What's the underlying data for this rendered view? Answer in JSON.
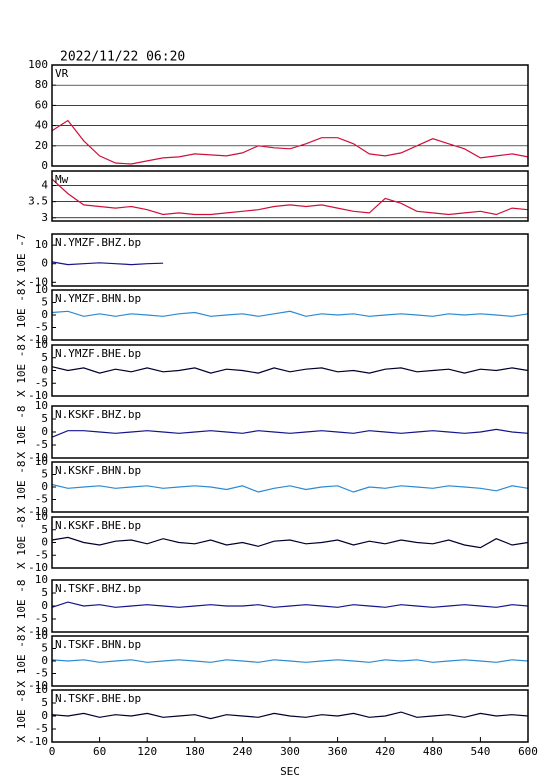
{
  "chart_data": [
    {
      "type": "line",
      "title": "2022/11/22 06:20",
      "label": "VR",
      "xlim": [
        0,
        600
      ],
      "ylim": [
        0,
        100
      ],
      "yticks": [
        0,
        20,
        40,
        60,
        80,
        100
      ],
      "grid": true,
      "x": [
        0,
        20,
        40,
        60,
        80,
        100,
        120,
        140,
        160,
        180,
        200,
        220,
        240,
        260,
        280,
        300,
        320,
        340,
        360,
        380,
        400,
        420,
        440,
        460,
        480,
        500,
        520,
        540,
        560,
        580,
        600
      ],
      "series": [
        {
          "color": "#d0103a",
          "values": [
            35,
            45,
            25,
            10,
            3,
            2,
            5,
            8,
            9,
            12,
            11,
            10,
            13,
            20,
            18,
            17,
            22,
            28,
            28,
            22,
            12,
            10,
            13,
            20,
            27,
            22,
            17,
            8,
            10,
            12,
            9
          ]
        }
      ]
    },
    {
      "type": "line",
      "label": "Mw",
      "xlim": [
        0,
        600
      ],
      "ylim": [
        2.9,
        4.45
      ],
      "yticks": [
        3.0,
        3.5,
        4.0
      ],
      "grid": true,
      "x": [
        0,
        20,
        40,
        60,
        80,
        100,
        120,
        140,
        160,
        180,
        200,
        220,
        240,
        260,
        280,
        300,
        320,
        340,
        360,
        380,
        400,
        420,
        440,
        460,
        480,
        500,
        520,
        540,
        560,
        580,
        600
      ],
      "series": [
        {
          "color": "#d0103a",
          "values": [
            4.2,
            3.75,
            3.4,
            3.35,
            3.3,
            3.35,
            3.25,
            3.1,
            3.15,
            3.1,
            3.1,
            3.15,
            3.2,
            3.25,
            3.35,
            3.4,
            3.35,
            3.4,
            3.3,
            3.2,
            3.15,
            3.6,
            3.45,
            3.2,
            3.15,
            3.1,
            3.15,
            3.2,
            3.1,
            3.3,
            3.25
          ]
        }
      ]
    },
    {
      "type": "line",
      "label": "N.YMZF.BHZ.bp",
      "ylabel": "X 10E -7",
      "xlim": [
        0,
        600
      ],
      "ylim": [
        -12,
        16
      ],
      "yticks": [
        -10,
        0,
        10
      ],
      "x": [
        0,
        20,
        40,
        60,
        80,
        100,
        120,
        140,
        160,
        180,
        200,
        220,
        240,
        260,
        280,
        300,
        320,
        340,
        360,
        380,
        400,
        420,
        440,
        460,
        480,
        500,
        520,
        540,
        560,
        580,
        600
      ],
      "series": [
        {
          "color": "#14148c",
          "values": [
            1,
            -0.5,
            0,
            0.5,
            0,
            -0.5,
            0,
            0.3,
            null,
            null,
            null,
            null,
            null,
            null,
            null,
            null,
            null,
            null,
            null,
            null,
            null,
            null,
            null,
            null,
            null,
            null,
            null,
            null,
            null,
            null,
            null
          ]
        }
      ]
    },
    {
      "type": "line",
      "label": "N.YMZF.BHN.bp",
      "ylabel": "X 10E -8",
      "xlim": [
        0,
        600
      ],
      "ylim": [
        -10,
        10
      ],
      "yticks": [
        -10,
        -5,
        0,
        5,
        10
      ],
      "x": [
        0,
        20,
        40,
        60,
        80,
        100,
        120,
        140,
        160,
        180,
        200,
        220,
        240,
        260,
        280,
        300,
        320,
        340,
        360,
        380,
        400,
        420,
        440,
        460,
        480,
        500,
        520,
        540,
        560,
        580,
        600
      ],
      "series": [
        {
          "color": "#2a8ad4",
          "values": [
            1,
            1.5,
            -0.5,
            0.5,
            -0.5,
            0.5,
            0,
            -0.5,
            0.5,
            1,
            -0.5,
            0,
            0.5,
            -0.5,
            0.5,
            1.5,
            -0.5,
            0.5,
            0,
            0.5,
            -0.5,
            0,
            0.5,
            0,
            -0.5,
            0.5,
            0,
            0.5,
            0,
            -0.5,
            0.5
          ]
        }
      ]
    },
    {
      "type": "line",
      "label": "N.YMZF.BHE.bp",
      "ylabel": "X 10E -8",
      "xlim": [
        0,
        600
      ],
      "ylim": [
        -10,
        10
      ],
      "yticks": [
        -10,
        -5,
        0,
        5,
        10
      ],
      "x": [
        0,
        20,
        40,
        60,
        80,
        100,
        120,
        140,
        160,
        180,
        200,
        220,
        240,
        260,
        280,
        300,
        320,
        340,
        360,
        380,
        400,
        420,
        440,
        460,
        480,
        500,
        520,
        540,
        560,
        580,
        600
      ],
      "series": [
        {
          "color": "#00002e",
          "values": [
            1.5,
            0,
            1,
            -1,
            0.5,
            -0.5,
            1,
            -0.5,
            0,
            1,
            -1,
            0.5,
            0,
            -1,
            1,
            -0.5,
            0.5,
            1,
            -0.5,
            0,
            -1,
            0.5,
            1,
            -0.5,
            0,
            0.5,
            -1,
            0.5,
            0,
            1,
            0
          ]
        }
      ]
    },
    {
      "type": "line",
      "label": "N.KSKF.BHZ.bp",
      "ylabel": "X 10E -8",
      "xlim": [
        0,
        600
      ],
      "ylim": [
        -10,
        10
      ],
      "yticks": [
        -10,
        -5,
        0,
        5,
        10
      ],
      "x": [
        0,
        20,
        40,
        60,
        80,
        100,
        120,
        140,
        160,
        180,
        200,
        220,
        240,
        260,
        280,
        300,
        320,
        340,
        360,
        380,
        400,
        420,
        440,
        460,
        480,
        500,
        520,
        540,
        560,
        580,
        600
      ],
      "series": [
        {
          "color": "#14148c",
          "values": [
            -2,
            0.5,
            0.5,
            0,
            -0.5,
            0,
            0.5,
            0,
            -0.5,
            0,
            0.5,
            0,
            -0.5,
            0.5,
            0,
            -0.5,
            0,
            0.5,
            0,
            -0.5,
            0.5,
            0,
            -0.5,
            0,
            0.5,
            0,
            -0.5,
            0,
            1,
            0,
            -0.5
          ]
        }
      ]
    },
    {
      "type": "line",
      "label": "N.KSKF.BHN.bp",
      "ylabel": "X 10E -8",
      "xlim": [
        0,
        600
      ],
      "ylim": [
        -10,
        10
      ],
      "yticks": [
        -10,
        -5,
        0,
        5,
        10
      ],
      "x": [
        0,
        20,
        40,
        60,
        80,
        100,
        120,
        140,
        160,
        180,
        200,
        220,
        240,
        260,
        280,
        300,
        320,
        340,
        360,
        380,
        400,
        420,
        440,
        460,
        480,
        500,
        520,
        540,
        560,
        580,
        600
      ],
      "series": [
        {
          "color": "#2a8ad4",
          "values": [
            1,
            -0.5,
            0,
            0.5,
            -0.5,
            0,
            0.5,
            -0.5,
            0,
            0.5,
            0,
            -1,
            0.5,
            -2,
            -0.5,
            0.5,
            -1,
            0,
            0.5,
            -2,
            0,
            -0.5,
            0.5,
            0,
            -0.5,
            0.5,
            0,
            -0.5,
            -1.5,
            0.5,
            -0.5
          ]
        }
      ]
    },
    {
      "type": "line",
      "label": "N.KSKF.BHE.bp",
      "ylabel": "X 10E -8",
      "xlim": [
        0,
        600
      ],
      "ylim": [
        -10,
        10
      ],
      "yticks": [
        -10,
        -5,
        0,
        5,
        10
      ],
      "x": [
        0,
        20,
        40,
        60,
        80,
        100,
        120,
        140,
        160,
        180,
        200,
        220,
        240,
        260,
        280,
        300,
        320,
        340,
        360,
        380,
        400,
        420,
        440,
        460,
        480,
        500,
        520,
        540,
        560,
        580,
        600
      ],
      "series": [
        {
          "color": "#00002e",
          "values": [
            1,
            2,
            0,
            -1,
            0.5,
            1,
            -0.5,
            1.5,
            0,
            -0.5,
            1,
            -1,
            0,
            -1.5,
            0.5,
            1,
            -0.5,
            0,
            1,
            -1,
            0.5,
            -0.5,
            1,
            0,
            -0.5,
            1,
            -1,
            -2,
            1.5,
            -1,
            0
          ]
        }
      ]
    },
    {
      "type": "line",
      "label": "N.TSKF.BHZ.bp",
      "ylabel": "X 10E -8",
      "xlim": [
        0,
        600
      ],
      "ylim": [
        -10,
        10
      ],
      "yticks": [
        -10,
        -5,
        0,
        5,
        10
      ],
      "x": [
        0,
        20,
        40,
        60,
        80,
        100,
        120,
        140,
        160,
        180,
        200,
        220,
        240,
        260,
        280,
        300,
        320,
        340,
        360,
        380,
        400,
        420,
        440,
        460,
        480,
        500,
        520,
        540,
        560,
        580,
        600
      ],
      "series": [
        {
          "color": "#14148c",
          "values": [
            -0.5,
            1.5,
            0,
            0.5,
            -0.5,
            0,
            0.5,
            0,
            -0.5,
            0,
            0.5,
            0,
            0,
            0.5,
            -0.5,
            0,
            0.5,
            0,
            -0.5,
            0.5,
            0,
            -0.5,
            0.5,
            0,
            -0.5,
            0,
            0.5,
            0,
            -0.5,
            0.5,
            0
          ]
        }
      ]
    },
    {
      "type": "line",
      "label": "N.TSKF.BHN.bp",
      "ylabel": "X 10E -8",
      "xlim": [
        0,
        600
      ],
      "ylim": [
        -10,
        10
      ],
      "yticks": [
        -10,
        -5,
        0,
        5,
        10
      ],
      "x": [
        0,
        20,
        40,
        60,
        80,
        100,
        120,
        140,
        160,
        180,
        200,
        220,
        240,
        260,
        280,
        300,
        320,
        340,
        360,
        380,
        400,
        420,
        440,
        460,
        480,
        500,
        520,
        540,
        560,
        580,
        600
      ],
      "series": [
        {
          "color": "#2a8ad4",
          "values": [
            0.5,
            0,
            0.5,
            -0.5,
            0,
            0.5,
            -0.5,
            0,
            0.5,
            0,
            -0.5,
            0.5,
            0,
            -0.5,
            0.5,
            0,
            -0.5,
            0,
            0.5,
            0,
            -0.5,
            0.5,
            0,
            0.5,
            -0.5,
            0,
            0.5,
            0,
            -0.5,
            0.5,
            0
          ]
        }
      ]
    },
    {
      "type": "line",
      "label": "N.TSKF.BHE.bp",
      "ylabel": "X 10E -8",
      "xlabel": "SEC",
      "xlim": [
        0,
        600
      ],
      "ylim": [
        -10,
        10
      ],
      "yticks": [
        -10,
        -5,
        0,
        5,
        10
      ],
      "xticks": [
        0,
        60,
        120,
        180,
        240,
        300,
        360,
        420,
        480,
        540,
        600
      ],
      "x": [
        0,
        20,
        40,
        60,
        80,
        100,
        120,
        140,
        160,
        180,
        200,
        220,
        240,
        260,
        280,
        300,
        320,
        340,
        360,
        380,
        400,
        420,
        440,
        460,
        480,
        500,
        520,
        540,
        560,
        580,
        600
      ],
      "series": [
        {
          "color": "#00002e",
          "values": [
            0.5,
            0,
            1,
            -0.5,
            0.5,
            0,
            1,
            -0.5,
            0,
            0.5,
            -1,
            0.5,
            0,
            -0.5,
            1,
            0,
            -0.5,
            0.5,
            0,
            1,
            -0.5,
            0,
            1.5,
            -0.5,
            0,
            0.5,
            -0.5,
            1,
            0,
            0.5,
            0
          ]
        }
      ]
    }
  ]
}
